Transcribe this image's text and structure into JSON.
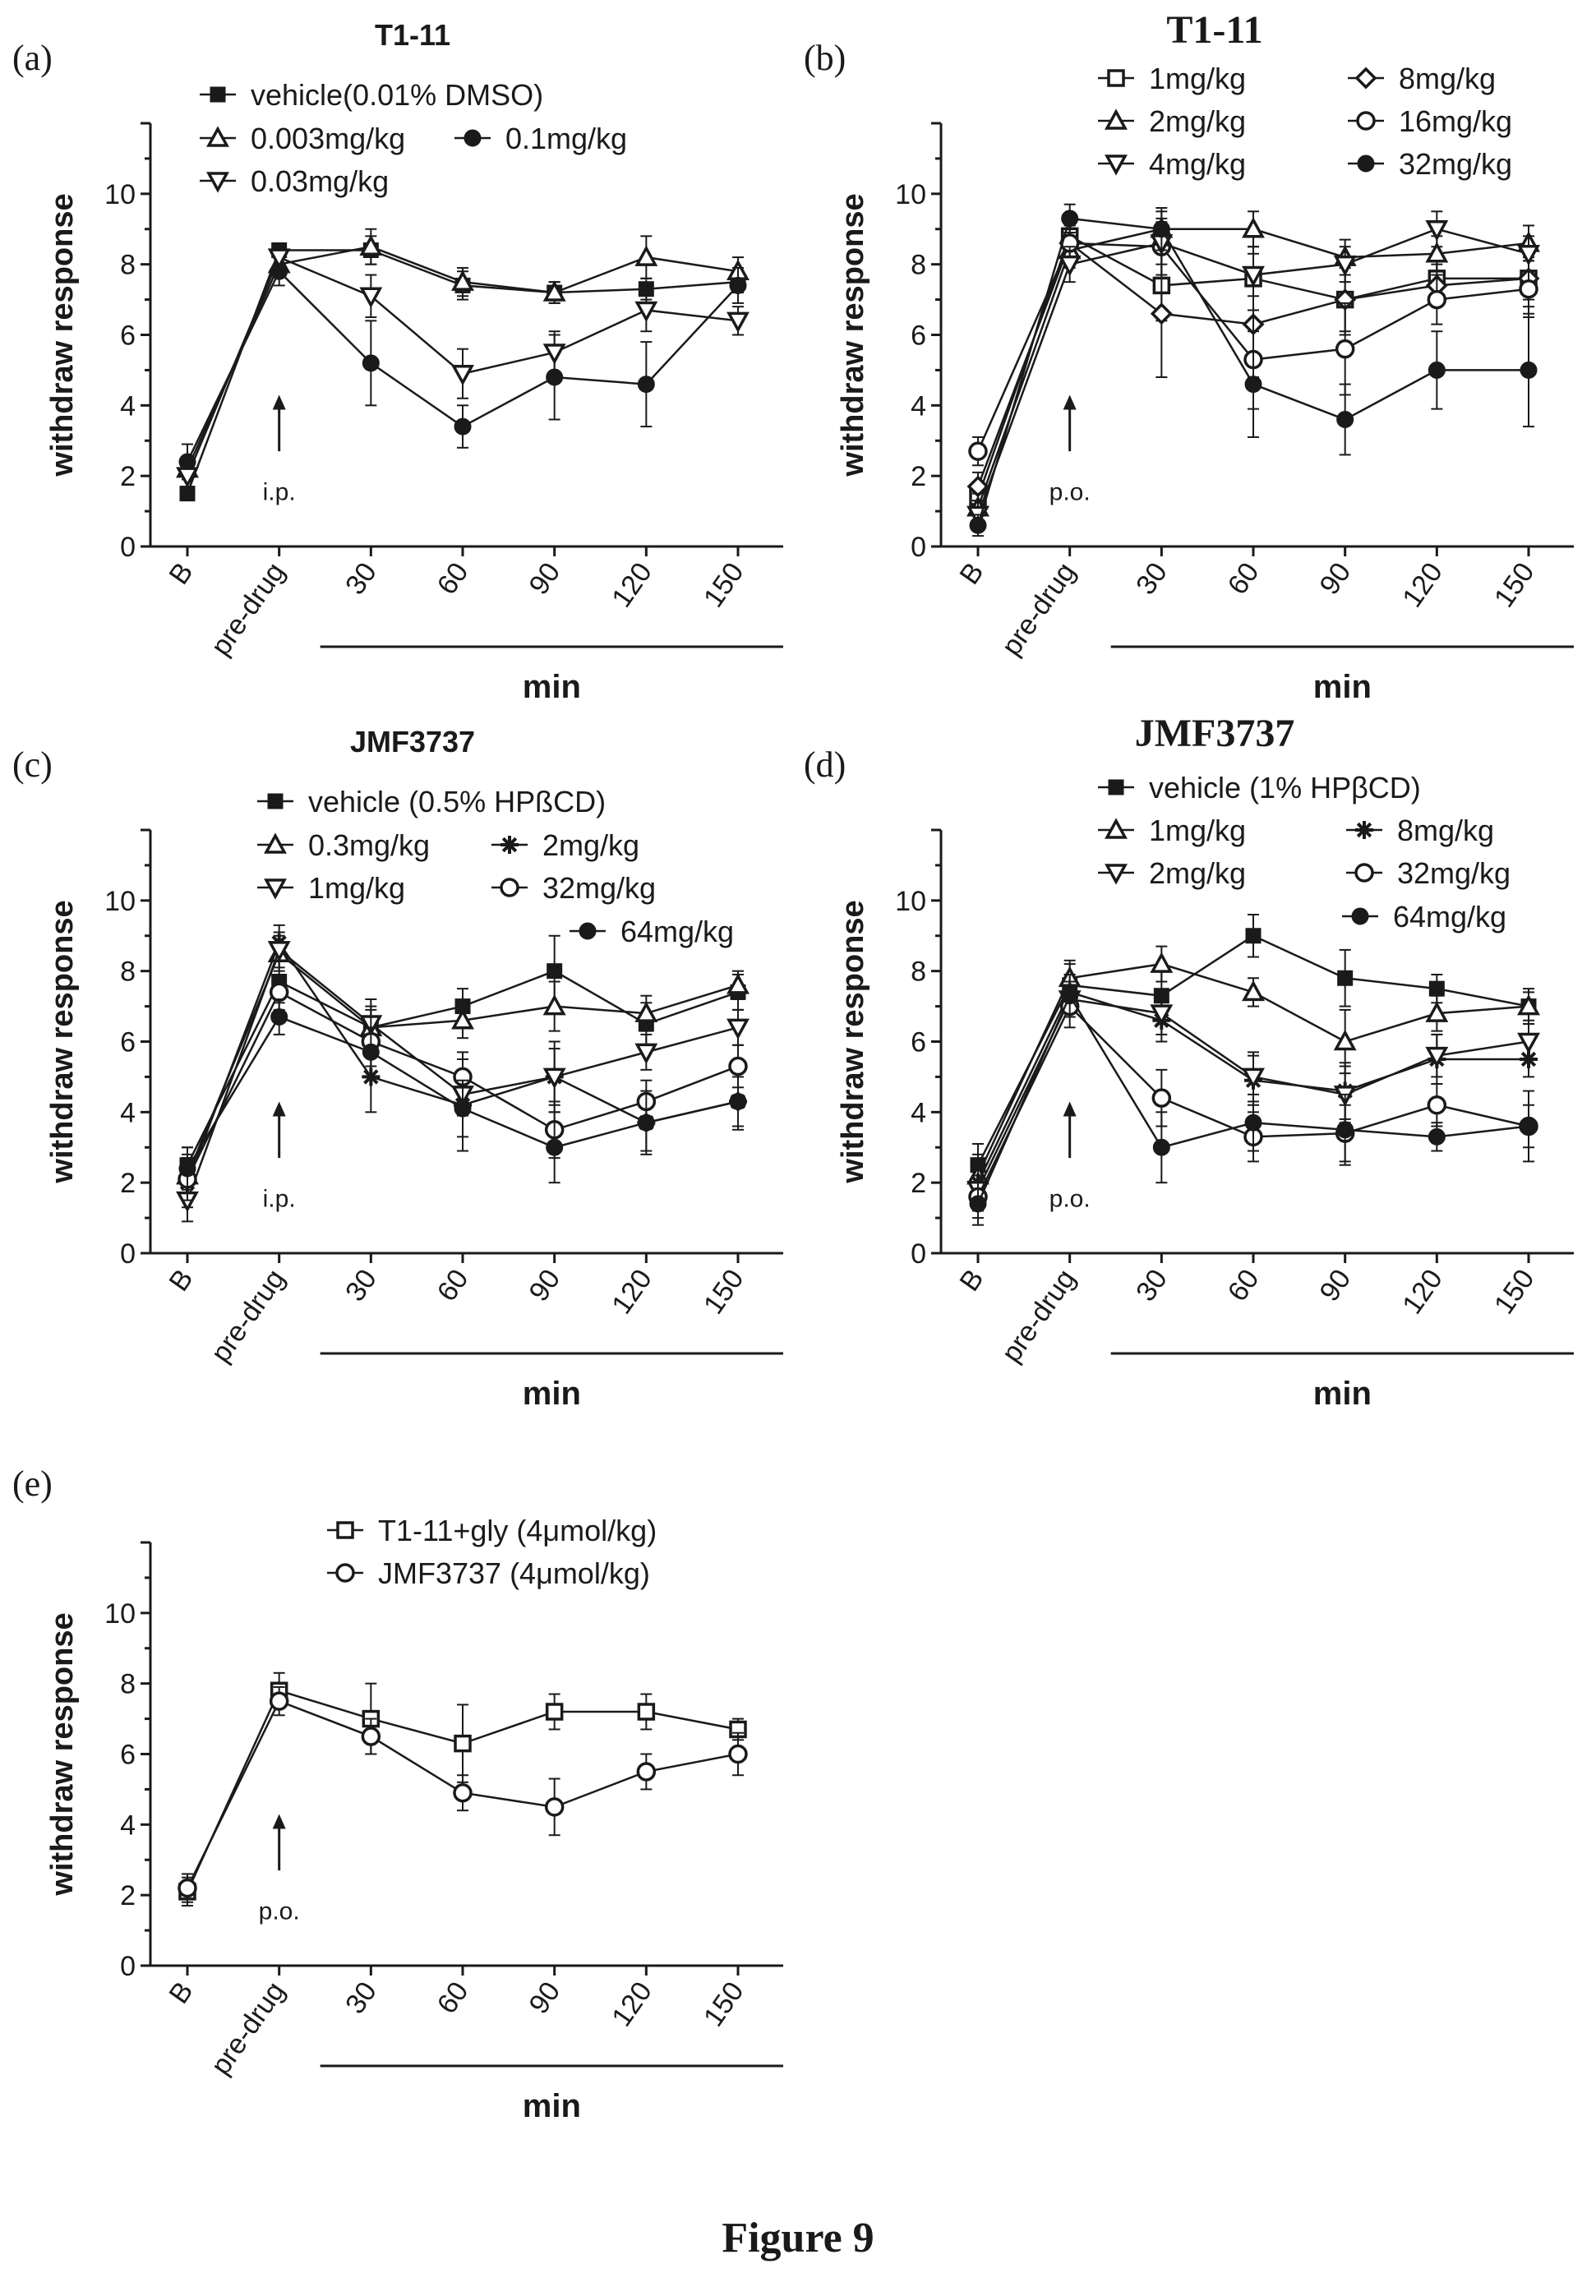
{
  "figure_label": "Figure 9",
  "chart_data": [
    {
      "panel": "(a)",
      "type": "line",
      "title": "T1-11",
      "title_font": "sans",
      "ylabel": "withdraw response",
      "xlabel": "min",
      "categories": [
        "B",
        "pre-drug",
        "30",
        "60",
        "90",
        "120",
        "150"
      ],
      "yticks": [
        "0",
        "2",
        "4",
        "6",
        "8",
        "10"
      ],
      "ylim": [
        0,
        12
      ],
      "annotation": "i.p.",
      "series": [
        {
          "name": "vehicle(0.01% DMSO)",
          "marker": "square-filled",
          "values": [
            1.5,
            8.4,
            8.4,
            7.4,
            7.2,
            7.3,
            7.5
          ],
          "err": [
            0.15,
            0.2,
            0.4,
            0.4,
            0.3,
            0.3,
            0.3
          ]
        },
        {
          "name": "0.003mg/kg",
          "marker": "triangle-up-open",
          "values": [
            2.2,
            8.0,
            8.5,
            7.5,
            7.2,
            8.2,
            7.8
          ],
          "err": [
            0.3,
            0.3,
            0.5,
            0.4,
            0.3,
            0.6,
            0.4
          ]
        },
        {
          "name": "0.1mg/kg",
          "marker": "circle-filled",
          "values": [
            2.4,
            7.8,
            5.2,
            3.4,
            4.8,
            4.6,
            7.4
          ],
          "err": [
            0.5,
            0.4,
            1.2,
            0.6,
            1.2,
            1.2,
            0.5
          ]
        },
        {
          "name": "0.03mg/kg",
          "marker": "triangle-down-open",
          "values": [
            2.0,
            8.2,
            7.1,
            4.9,
            5.5,
            6.7,
            6.4
          ],
          "err": [
            0.3,
            0.3,
            0.6,
            0.7,
            0.6,
            0.6,
            0.4
          ]
        }
      ]
    },
    {
      "panel": "(b)",
      "type": "line",
      "title": "T1-11",
      "title_font": "serif",
      "ylabel": "withdraw response",
      "xlabel": "min",
      "categories": [
        "B",
        "pre-drug",
        "30",
        "60",
        "90",
        "120",
        "150"
      ],
      "yticks": [
        "0",
        "2",
        "4",
        "6",
        "8",
        "10"
      ],
      "ylim": [
        0,
        12
      ],
      "annotation": "p.o.",
      "series": [
        {
          "name": "1mg/kg",
          "marker": "square-open",
          "values": [
            1.4,
            8.8,
            7.4,
            7.6,
            7.0,
            7.6,
            7.6
          ],
          "err": [
            0.4,
            0.5,
            1.0,
            0.9,
            0.9,
            0.5,
            0.6
          ]
        },
        {
          "name": "8mg/kg",
          "marker": "diamond-open",
          "values": [
            1.7,
            8.6,
            6.6,
            6.3,
            7.0,
            7.4,
            7.6
          ],
          "err": [
            0.4,
            0.5,
            1.8,
            1.5,
            1.0,
            0.6,
            0.8
          ]
        },
        {
          "name": "2mg/kg",
          "marker": "triangle-up-open",
          "values": [
            1.1,
            8.4,
            9.0,
            9.0,
            8.2,
            8.3,
            8.6
          ],
          "err": [
            0.4,
            0.5,
            0.5,
            0.5,
            0.5,
            0.5,
            0.5
          ]
        },
        {
          "name": "16mg/kg",
          "marker": "circle-open",
          "values": [
            2.7,
            8.6,
            8.5,
            5.3,
            5.6,
            7.0,
            7.3
          ],
          "err": [
            0.4,
            0.5,
            0.8,
            1.4,
            1.3,
            0.7,
            0.8
          ]
        },
        {
          "name": "4mg/kg",
          "marker": "triangle-down-open",
          "values": [
            0.9,
            8.0,
            8.6,
            7.7,
            8.0,
            9.0,
            8.3
          ],
          "err": [
            0.4,
            0.5,
            0.6,
            0.6,
            0.5,
            0.5,
            0.5
          ]
        },
        {
          "name": "32mg/kg",
          "marker": "circle-filled",
          "values": [
            0.6,
            9.3,
            9.0,
            4.6,
            3.6,
            5.0,
            5.0
          ],
          "err": [
            0.3,
            0.4,
            0.6,
            1.5,
            1.0,
            1.1,
            1.6
          ]
        }
      ]
    },
    {
      "panel": "(c)",
      "type": "line",
      "title": "JMF3737",
      "title_font": "sans",
      "ylabel": "withdraw response",
      "xlabel": "min",
      "categories": [
        "B",
        "pre-drug",
        "30",
        "60",
        "90",
        "120",
        "150"
      ],
      "yticks": [
        "0",
        "2",
        "4",
        "6",
        "8",
        "10"
      ],
      "ylim": [
        0,
        12
      ],
      "annotation": "i.p.",
      "series": [
        {
          "name": "vehicle (0.5% HPßCD)",
          "marker": "square-filled",
          "values": [
            2.5,
            7.7,
            6.4,
            7.0,
            8.0,
            6.5,
            7.4
          ],
          "err": [
            0.5,
            0.6,
            0.6,
            0.5,
            1.0,
            0.6,
            0.5
          ]
        },
        {
          "name": "0.3mg/kg",
          "marker": "triangle-up-open",
          "values": [
            2.2,
            8.5,
            6.4,
            6.6,
            7.0,
            6.8,
            7.6
          ],
          "err": [
            0.6,
            0.5,
            0.5,
            0.5,
            0.7,
            0.5,
            0.4
          ]
        },
        {
          "name": "2mg/kg",
          "marker": "asterisk",
          "values": [
            2.0,
            8.8,
            5.0,
            4.2,
            5.0,
            3.7,
            4.3
          ],
          "err": [
            0.7,
            0.5,
            1.0,
            1.3,
            1.0,
            0.8,
            0.8
          ]
        },
        {
          "name": "1mg/kg",
          "marker": "triangle-down-open",
          "values": [
            1.5,
            8.6,
            6.5,
            4.5,
            5.0,
            5.7,
            6.4
          ],
          "err": [
            0.6,
            0.5,
            0.7,
            0.6,
            0.8,
            0.5,
            0.5
          ]
        },
        {
          "name": "32mg/kg",
          "marker": "circle-open",
          "values": [
            2.1,
            7.4,
            6.0,
            5.0,
            3.5,
            4.3,
            5.3
          ],
          "err": [
            0.6,
            0.5,
            0.7,
            0.7,
            0.8,
            0.6,
            0.6
          ]
        },
        {
          "name": "64mg/kg",
          "marker": "circle-filled",
          "values": [
            2.4,
            6.7,
            5.7,
            4.1,
            3.0,
            3.7,
            4.3
          ],
          "err": [
            0.6,
            0.5,
            0.7,
            0.8,
            1.0,
            0.9,
            0.7
          ]
        }
      ]
    },
    {
      "panel": "(d)",
      "type": "line",
      "title": "JMF3737",
      "title_font": "serif",
      "ylabel": "withdraw response",
      "xlabel": "min",
      "categories": [
        "B",
        "pre-drug",
        "30",
        "60",
        "90",
        "120",
        "150"
      ],
      "yticks": [
        "0",
        "2",
        "4",
        "6",
        "8",
        "10"
      ],
      "ylim": [
        0,
        12
      ],
      "annotation": "p.o.",
      "series": [
        {
          "name": "vehicle (1% HPβCD)",
          "marker": "square-filled",
          "values": [
            2.5,
            7.6,
            7.3,
            9.0,
            7.8,
            7.5,
            7.0
          ],
          "err": [
            0.6,
            0.6,
            0.8,
            0.6,
            0.8,
            0.4,
            0.5
          ]
        },
        {
          "name": "1mg/kg",
          "marker": "triangle-up-open",
          "values": [
            2.2,
            7.8,
            8.2,
            7.4,
            6.0,
            6.8,
            7.0
          ],
          "err": [
            0.6,
            0.5,
            0.5,
            0.4,
            0.9,
            0.5,
            0.4
          ]
        },
        {
          "name": "8mg/kg",
          "marker": "asterisk",
          "values": [
            2.0,
            7.4,
            6.6,
            4.9,
            4.6,
            5.5,
            5.5
          ],
          "err": [
            0.6,
            0.5,
            0.6,
            0.7,
            0.8,
            0.7,
            0.5
          ]
        },
        {
          "name": "2mg/kg",
          "marker": "triangle-down-open",
          "values": [
            1.8,
            7.2,
            6.8,
            5.0,
            4.5,
            5.6,
            6.0
          ],
          "err": [
            0.6,
            0.5,
            0.6,
            0.7,
            0.8,
            0.6,
            0.5
          ]
        },
        {
          "name": "32mg/kg",
          "marker": "circle-open",
          "values": [
            1.6,
            7.0,
            4.4,
            3.3,
            3.4,
            4.2,
            3.6
          ],
          "err": [
            0.6,
            0.6,
            0.8,
            0.7,
            0.8,
            0.6,
            0.6
          ]
        },
        {
          "name": "64mg/kg",
          "marker": "circle-filled",
          "values": [
            1.4,
            7.3,
            3.0,
            3.7,
            3.5,
            3.3,
            3.6
          ],
          "err": [
            0.6,
            0.6,
            1.0,
            0.8,
            1.0,
            0.4,
            1.0
          ]
        }
      ]
    },
    {
      "panel": "(e)",
      "type": "line",
      "title": "",
      "title_font": "sans",
      "ylabel": "withdraw response",
      "xlabel": "min",
      "categories": [
        "B",
        "pre-drug",
        "30",
        "60",
        "90",
        "120",
        "150"
      ],
      "yticks": [
        "0",
        "2",
        "4",
        "6",
        "8",
        "10"
      ],
      "ylim": [
        0,
        12
      ],
      "annotation": "p.o.",
      "series": [
        {
          "name": "T1-11+gly (4μmol/kg)",
          "marker": "square-open",
          "values": [
            2.1,
            7.8,
            7.0,
            6.3,
            7.2,
            7.2,
            6.7
          ],
          "err": [
            0.4,
            0.5,
            1.0,
            1.1,
            0.5,
            0.5,
            0.3
          ]
        },
        {
          "name": "JMF3737 (4μmol/kg)",
          "marker": "circle-open",
          "values": [
            2.2,
            7.5,
            6.5,
            4.9,
            4.5,
            5.5,
            6.0
          ],
          "err": [
            0.4,
            0.4,
            0.5,
            0.5,
            0.8,
            0.5,
            0.6
          ]
        }
      ]
    }
  ]
}
